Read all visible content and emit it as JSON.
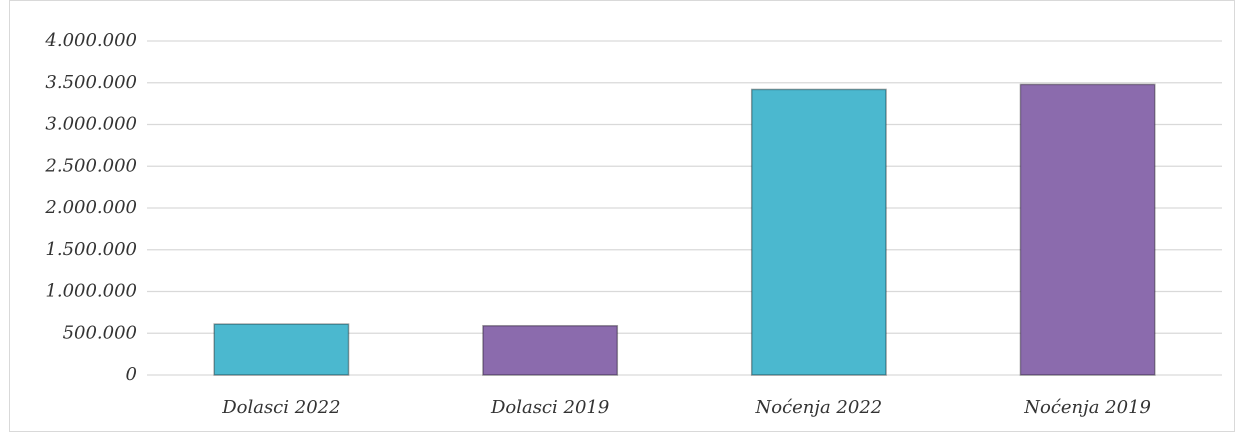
{
  "chart_data": {
    "type": "bar",
    "categories": [
      "Dolasci 2022",
      "Dolasci 2019",
      "Noćenja 2022",
      "Noćenja 2019"
    ],
    "values": [
      610000,
      590000,
      3420000,
      3480000
    ],
    "colors": [
      "#4bb8cf",
      "#8b6bad",
      "#4bb8cf",
      "#8b6bad"
    ],
    "ylim": [
      0,
      4000000
    ],
    "yticks": [
      0,
      {
        "value": 500000,
        "label": "500.000"
      },
      {
        "value": 1000000,
        "label": "1.000.000"
      },
      {
        "value": 1500000,
        "label": "1.500.000"
      },
      {
        "value": 2000000,
        "label": "2.000.000"
      },
      {
        "value": 2500000,
        "label": "2.500.000"
      },
      {
        "value": 3000000,
        "label": "3.000.000"
      },
      {
        "value": 3500000,
        "label": "3.500.000"
      },
      {
        "value": 4000000,
        "label": "4.000.000"
      }
    ],
    "grid": true
  }
}
